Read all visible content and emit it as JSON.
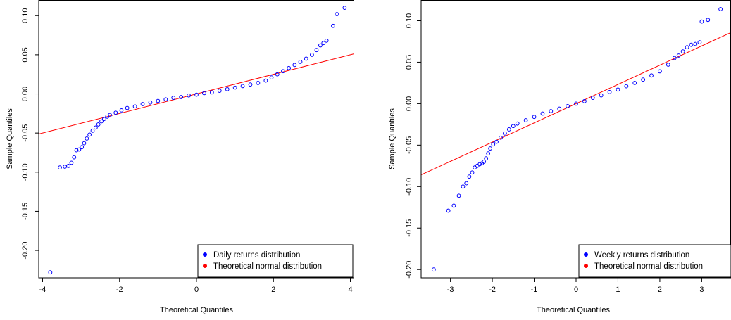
{
  "chart_data": [
    {
      "type": "scatter",
      "xlabel": "Theoretical Quantiles",
      "ylabel": "Sample Quantiles",
      "xlim": [
        -4.1,
        4.1
      ],
      "ylim": [
        -0.235,
        0.12
      ],
      "x_ticks": [
        -4,
        -2,
        0,
        2,
        4
      ],
      "y_ticks": [
        -0.2,
        -0.15,
        -0.1,
        -0.05,
        0.0,
        0.05,
        0.1
      ],
      "x_tick_labels": [
        "-4",
        "-2",
        "0",
        "2",
        "4"
      ],
      "y_tick_labels": [
        "-0.20",
        "-0.15",
        "-0.10",
        "-0.05",
        "0.00",
        "0.05",
        "0.10"
      ],
      "reference_line": {
        "slope": 0.0125,
        "intercept": 0.0,
        "color": "#ff0000"
      },
      "legend": {
        "placement": "bottom-right",
        "entries": [
          {
            "label": "Daily returns distribution",
            "color": "#0000ff"
          },
          {
            "label": "Theoretical normal distribution",
            "color": "#ff0000"
          }
        ]
      },
      "series": [
        {
          "name": "Daily returns distribution",
          "color": "#0000ff",
          "marker": "open-circle",
          "points": [
            [
              -3.8,
              -0.228
            ],
            [
              -3.55,
              -0.094
            ],
            [
              -3.42,
              -0.093
            ],
            [
              -3.33,
              -0.092
            ],
            [
              -3.25,
              -0.088
            ],
            [
              -3.18,
              -0.081
            ],
            [
              -3.12,
              -0.072
            ],
            [
              -3.05,
              -0.071
            ],
            [
              -2.98,
              -0.068
            ],
            [
              -2.92,
              -0.063
            ],
            [
              -2.85,
              -0.057
            ],
            [
              -2.78,
              -0.052
            ],
            [
              -2.7,
              -0.047
            ],
            [
              -2.62,
              -0.043
            ],
            [
              -2.55,
              -0.039
            ],
            [
              -2.47,
              -0.035
            ],
            [
              -2.4,
              -0.032
            ],
            [
              -2.32,
              -0.029
            ],
            [
              -2.25,
              -0.027
            ],
            [
              -2.1,
              -0.024
            ],
            [
              -1.95,
              -0.021
            ],
            [
              -1.8,
              -0.018
            ],
            [
              -1.6,
              -0.016
            ],
            [
              -1.4,
              -0.013
            ],
            [
              -1.2,
              -0.011
            ],
            [
              -1.0,
              -0.009
            ],
            [
              -0.8,
              -0.007
            ],
            [
              -0.6,
              -0.005
            ],
            [
              -0.4,
              -0.004
            ],
            [
              -0.2,
              -0.002
            ],
            [
              0.0,
              -0.001
            ],
            [
              0.2,
              0.001
            ],
            [
              0.4,
              0.002
            ],
            [
              0.6,
              0.004
            ],
            [
              0.8,
              0.006
            ],
            [
              1.0,
              0.008
            ],
            [
              1.2,
              0.01
            ],
            [
              1.4,
              0.012
            ],
            [
              1.6,
              0.014
            ],
            [
              1.8,
              0.017
            ],
            [
              1.95,
              0.021
            ],
            [
              2.1,
              0.025
            ],
            [
              2.25,
              0.029
            ],
            [
              2.4,
              0.033
            ],
            [
              2.55,
              0.037
            ],
            [
              2.7,
              0.041
            ],
            [
              2.85,
              0.045
            ],
            [
              3.0,
              0.05
            ],
            [
              3.12,
              0.056
            ],
            [
              3.22,
              0.062
            ],
            [
              3.3,
              0.065
            ],
            [
              3.38,
              0.068
            ],
            [
              3.55,
              0.087
            ],
            [
              3.65,
              0.102
            ],
            [
              3.85,
              0.11
            ]
          ]
        }
      ]
    },
    {
      "type": "scatter",
      "xlabel": "Theoretical Quantiles",
      "ylabel": "Sample Quantiles",
      "xlim": [
        -3.7,
        3.7
      ],
      "ylim": [
        -0.21,
        0.125
      ],
      "x_ticks": [
        -3,
        -2,
        -1,
        0,
        1,
        2,
        3
      ],
      "y_ticks": [
        -0.2,
        -0.15,
        -0.1,
        -0.05,
        0.0,
        0.05,
        0.1
      ],
      "x_tick_labels": [
        "-3",
        "-2",
        "-1",
        "0",
        "1",
        "2",
        "3"
      ],
      "y_tick_labels": [
        "-0.20",
        "-0.15",
        "-0.10",
        "-0.05",
        "0.00",
        "0.05",
        "0.10"
      ],
      "reference_line": {
        "slope": 0.0232,
        "intercept": 0.0,
        "color": "#ff0000"
      },
      "legend": {
        "placement": "bottom-right",
        "entries": [
          {
            "label": "Weekly returns distribution",
            "color": "#0000ff"
          },
          {
            "label": "Theoretical normal distribution",
            "color": "#ff0000"
          }
        ]
      },
      "series": [
        {
          "name": "Weekly returns distribution",
          "color": "#0000ff",
          "marker": "open-circle",
          "points": [
            [
              -3.4,
              -0.2
            ],
            [
              -3.05,
              -0.129
            ],
            [
              -2.92,
              -0.123
            ],
            [
              -2.8,
              -0.111
            ],
            [
              -2.7,
              -0.1
            ],
            [
              -2.62,
              -0.096
            ],
            [
              -2.55,
              -0.088
            ],
            [
              -2.48,
              -0.083
            ],
            [
              -2.42,
              -0.077
            ],
            [
              -2.36,
              -0.075
            ],
            [
              -2.3,
              -0.073
            ],
            [
              -2.25,
              -0.072
            ],
            [
              -2.2,
              -0.07
            ],
            [
              -2.15,
              -0.066
            ],
            [
              -2.1,
              -0.06
            ],
            [
              -2.05,
              -0.054
            ],
            [
              -1.98,
              -0.049
            ],
            [
              -1.9,
              -0.046
            ],
            [
              -1.8,
              -0.041
            ],
            [
              -1.7,
              -0.036
            ],
            [
              -1.6,
              -0.031
            ],
            [
              -1.5,
              -0.027
            ],
            [
              -1.4,
              -0.024
            ],
            [
              -1.2,
              -0.02
            ],
            [
              -1.0,
              -0.016
            ],
            [
              -0.8,
              -0.012
            ],
            [
              -0.6,
              -0.009
            ],
            [
              -0.4,
              -0.006
            ],
            [
              -0.2,
              -0.003
            ],
            [
              0.0,
              0.0
            ],
            [
              0.2,
              0.003
            ],
            [
              0.4,
              0.007
            ],
            [
              0.6,
              0.01
            ],
            [
              0.8,
              0.014
            ],
            [
              1.0,
              0.017
            ],
            [
              1.2,
              0.021
            ],
            [
              1.4,
              0.025
            ],
            [
              1.6,
              0.029
            ],
            [
              1.8,
              0.034
            ],
            [
              2.0,
              0.039
            ],
            [
              2.2,
              0.047
            ],
            [
              2.35,
              0.055
            ],
            [
              2.45,
              0.058
            ],
            [
              2.55,
              0.063
            ],
            [
              2.65,
              0.068
            ],
            [
              2.75,
              0.071
            ],
            [
              2.85,
              0.072
            ],
            [
              2.95,
              0.074
            ],
            [
              3.0,
              0.099
            ],
            [
              3.15,
              0.101
            ],
            [
              3.45,
              0.114
            ]
          ]
        }
      ]
    }
  ]
}
